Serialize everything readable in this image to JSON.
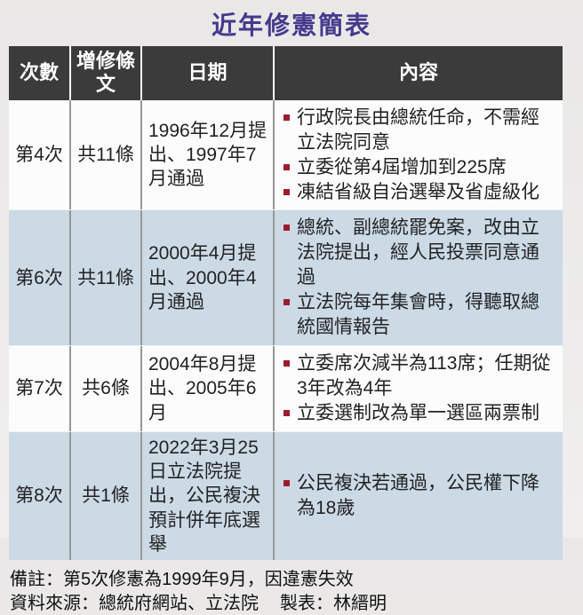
{
  "title": "近年修憲簡表",
  "colors": {
    "title_text": "#443a8c",
    "header_bg": "#3b3b3b",
    "header_text": "#ffffff",
    "row_bg": "#fcfcfc",
    "row_alt_bg": "#ccdae6",
    "bullet": "#9e1c30",
    "page_bg": "#eeedec"
  },
  "table": {
    "headers": [
      "次數",
      "增修條文",
      "日期",
      "內容"
    ],
    "rows": [
      {
        "times": "第4次",
        "articles": "共11條",
        "date": "1996年12月提出、1997年7月通過",
        "contents": [
          "行政院長由總統任命，不需經立法院同意",
          "立委從第4屆增加到225席",
          "凍結省級自治選舉及省虛級化"
        ]
      },
      {
        "times": "第6次",
        "articles": "共11條",
        "date": "2000年4月提出、2000年4月通過",
        "contents": [
          "總統、副總統罷免案，改由立法院提出，經人民投票同意通過",
          "立法院每年集會時，得聽取總統國情報告"
        ]
      },
      {
        "times": "第7次",
        "articles": "共6條",
        "date": "2004年8月提出、2005年6月",
        "contents": [
          "立委席次減半為113席；任期從3年改為4年",
          "立委選制改為單一選區兩票制"
        ]
      },
      {
        "times": "第8次",
        "articles": "共1條",
        "date": "2022年3月25日立法院提出，公民複決預計併年底選舉",
        "contents": [
          "公民複決若通過，公民權下降為18歲"
        ]
      }
    ]
  },
  "footer": {
    "note": "備註：第5次修憲為1999年9月，因違憲失效",
    "source": "資料來源：總統府網站、立法院",
    "credit": "製表：林縉明"
  }
}
